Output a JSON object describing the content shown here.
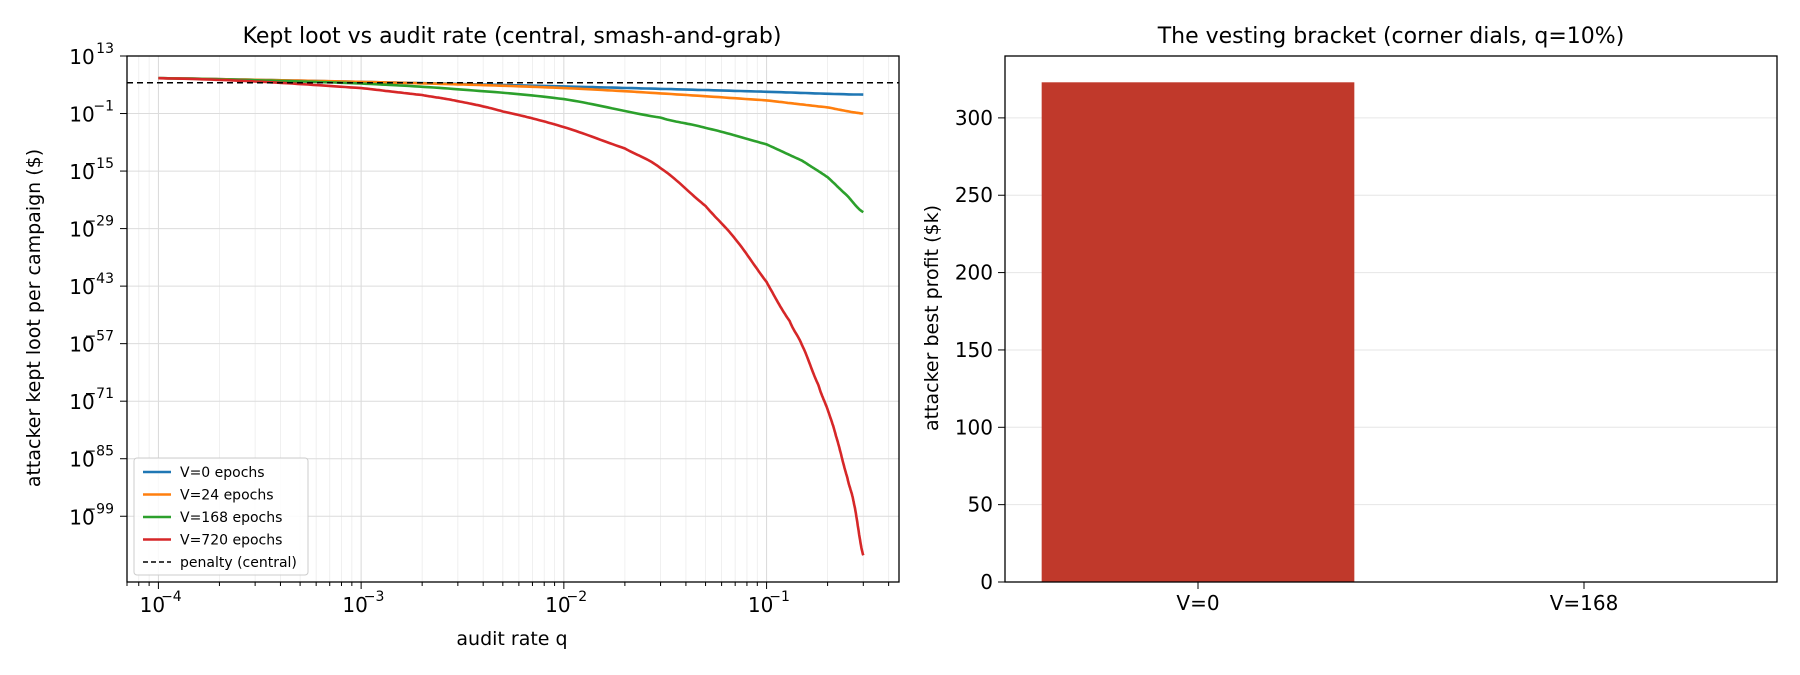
{
  "chart_data": [
    {
      "type": "line",
      "title": "Kept loot vs audit rate (central, smash-and-grab)",
      "xlabel": "audit rate q",
      "ylabel": "attacker kept loot per campaign ($)",
      "x_scale": "log",
      "y_scale": "log",
      "xlim": [
        7e-05,
        0.45
      ],
      "ylim_log10": [
        -115,
        13
      ],
      "x_ticks": [
        {
          "value": 0.0001,
          "base": "10",
          "exp": "−4"
        },
        {
          "value": 0.001,
          "base": "10",
          "exp": "−3"
        },
        {
          "value": 0.01,
          "base": "10",
          "exp": "−2"
        },
        {
          "value": 0.1,
          "base": "10",
          "exp": "−1"
        }
      ],
      "y_ticks": [
        {
          "log10": 13,
          "base": "10",
          "exp": "13"
        },
        {
          "log10": -1,
          "base": "10",
          "exp": "−1"
        },
        {
          "log10": -15,
          "base": "10",
          "exp": "−15"
        },
        {
          "log10": -29,
          "base": "10",
          "exp": "−29"
        },
        {
          "log10": -43,
          "base": "10",
          "exp": "−43"
        },
        {
          "log10": -57,
          "base": "10",
          "exp": "−57"
        },
        {
          "log10": -71,
          "base": "10",
          "exp": "−71"
        },
        {
          "log10": -85,
          "base": "10",
          "exp": "−85"
        },
        {
          "log10": -99,
          "base": "10",
          "exp": "−99"
        }
      ],
      "grid": true,
      "legend_position": "lower-left",
      "series": [
        {
          "name": "V=0 epochs",
          "color": "#1f77b4",
          "style": "solid",
          "x": [
            0.0001,
            0.0003,
            0.001,
            0.003,
            0.01,
            0.03,
            0.1,
            0.3
          ],
          "log10_y": [
            7.6,
            7.2,
            6.7,
            6.2,
            5.6,
            5.0,
            4.3,
            3.6
          ]
        },
        {
          "name": "V=24 epochs",
          "color": "#ff7f0e",
          "style": "solid",
          "x": [
            0.0001,
            0.0003,
            0.001,
            0.003,
            0.01,
            0.03,
            0.1,
            0.2,
            0.3
          ],
          "log10_y": [
            7.6,
            7.2,
            6.7,
            6.1,
            5.2,
            3.9,
            2.2,
            0.5,
            -1.0
          ]
        },
        {
          "name": "V=168 epochs",
          "color": "#2ca02c",
          "style": "solid",
          "x": [
            0.0001,
            0.0003,
            0.001,
            0.003,
            0.01,
            0.03,
            0.05,
            0.1,
            0.15,
            0.2,
            0.25,
            0.3
          ],
          "log10_y": [
            7.6,
            7.1,
            6.3,
            4.9,
            2.5,
            -2.0,
            -4.5,
            -8.5,
            -12.5,
            -16.5,
            -21.0,
            -25.0
          ]
        },
        {
          "name": "V=720 epochs",
          "color": "#d62728",
          "style": "solid",
          "x": [
            0.0001,
            0.0003,
            0.001,
            0.002,
            0.003,
            0.005,
            0.01,
            0.02,
            0.03,
            0.05,
            0.07,
            0.1,
            0.13,
            0.15,
            0.18,
            0.2,
            0.22,
            0.25,
            0.27,
            0.3
          ],
          "log10_y": [
            7.6,
            6.8,
            5.2,
            3.5,
            2.0,
            -0.5,
            -4.3,
            -9.5,
            -14.3,
            -23.5,
            -31.5,
            -42.0,
            -51.5,
            -57.5,
            -67.0,
            -73.0,
            -79.5,
            -89.5,
            -96.0,
            -108.5
          ]
        },
        {
          "name": "penalty (central)",
          "color": "#000000",
          "style": "dashed",
          "x": [
            7e-05,
            0.45
          ],
          "log10_y": [
            6.5,
            6.5
          ]
        }
      ]
    },
    {
      "type": "bar",
      "title": "The vesting bracket (corner dials, q=10%)",
      "xlabel": "",
      "ylabel": "attacker best profit ($k)",
      "categories": [
        "V=0",
        "V=168"
      ],
      "values": [
        323,
        0
      ],
      "color": "#c0392b",
      "ylim": [
        0,
        340
      ],
      "y_ticks": [
        0,
        50,
        100,
        150,
        200,
        250,
        300
      ],
      "grid": true
    }
  ]
}
